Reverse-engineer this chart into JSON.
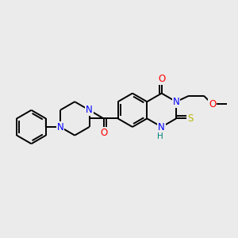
{
  "background_color": "#ebebeb",
  "bond_color": "#000000",
  "atom_colors": {
    "N": "#0000ff",
    "O": "#ff0000",
    "S": "#b8b800",
    "H": "#008080",
    "C": "#000000"
  },
  "figsize": [
    3.0,
    3.0
  ],
  "dpi": 100,
  "lw": 1.4,
  "fs": 8.5
}
